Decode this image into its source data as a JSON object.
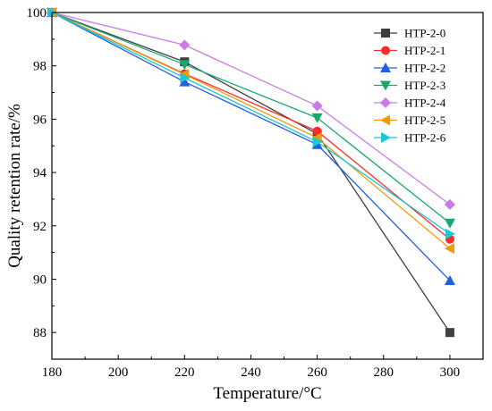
{
  "chart_data": {
    "type": "line",
    "title": "",
    "xlabel": "Temperature/°C",
    "ylabel": "Quality retention rate/%",
    "xlim": [
      180,
      310
    ],
    "ylim": [
      87,
      100
    ],
    "xticks": [
      180,
      200,
      220,
      240,
      260,
      280,
      300
    ],
    "yticks": [
      88,
      90,
      92,
      94,
      96,
      98,
      100
    ],
    "grid": false,
    "legend_position": "top-right",
    "x": [
      180,
      220,
      260,
      300
    ],
    "series": [
      {
        "name": "HTP-2-0",
        "values": [
          100,
          98.15,
          95.45,
          88.0
        ],
        "color": "#3f3f3f",
        "marker": "square"
      },
      {
        "name": "HTP-2-1",
        "values": [
          100,
          97.7,
          95.55,
          91.5
        ],
        "color": "#ff2a2a",
        "marker": "circle"
      },
      {
        "name": "HTP-2-2",
        "values": [
          100,
          97.4,
          95.05,
          89.95
        ],
        "color": "#1f5fe0",
        "marker": "triangle-up"
      },
      {
        "name": "HTP-2-3",
        "values": [
          100,
          98.05,
          96.05,
          92.1
        ],
        "color": "#17a86e",
        "marker": "triangle-down"
      },
      {
        "name": "HTP-2-4",
        "values": [
          100,
          98.78,
          96.5,
          92.8
        ],
        "color": "#cc7be6",
        "marker": "diamond"
      },
      {
        "name": "HTP-2-5",
        "values": [
          100,
          97.68,
          95.3,
          91.15
        ],
        "color": "#f09a0a",
        "marker": "triangle-left"
      },
      {
        "name": "HTP-2-6",
        "values": [
          100,
          97.55,
          95.15,
          91.7
        ],
        "color": "#1cc8d6",
        "marker": "triangle-right"
      }
    ]
  }
}
